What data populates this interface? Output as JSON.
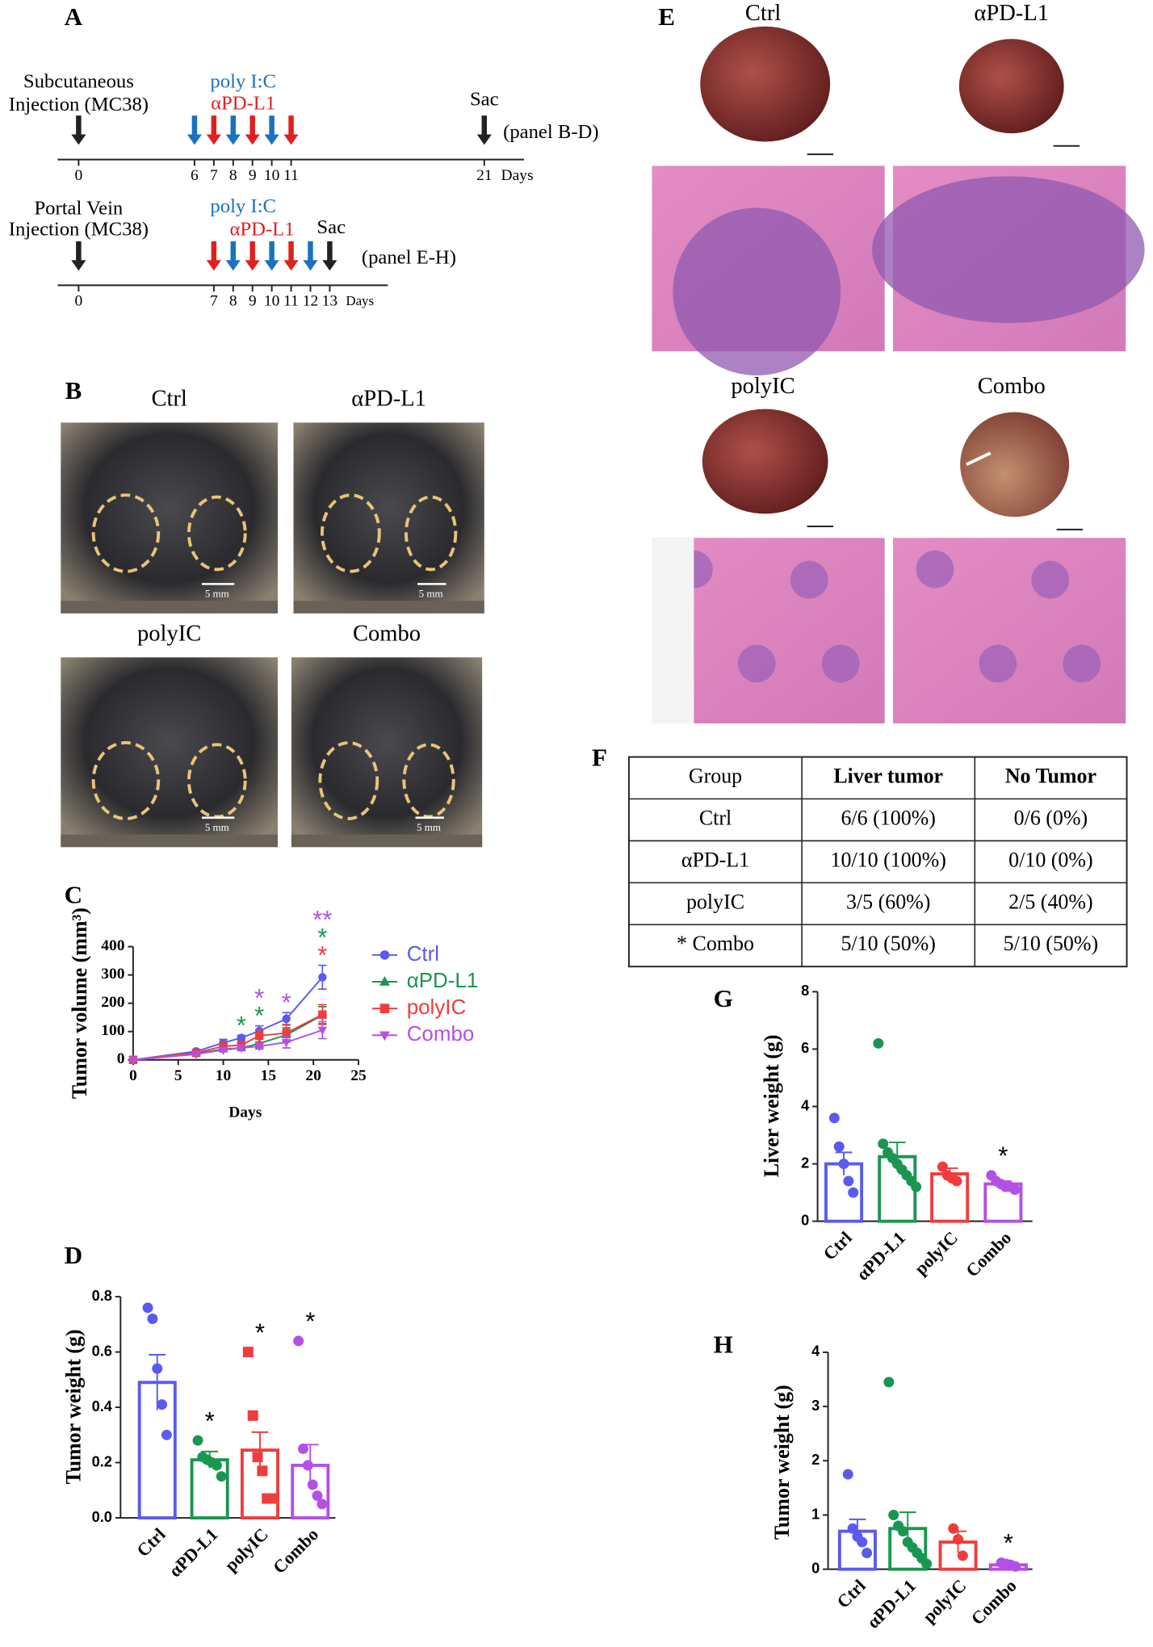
{
  "panel_letters": [
    "A",
    "B",
    "C",
    "D",
    "E",
    "F",
    "G",
    "H"
  ],
  "timeline": {
    "sections": [
      {
        "injection": [
          "Subcutaneous",
          "Injection (MC38)"
        ],
        "treatments": [
          "poly I:C",
          "αPD-L1"
        ],
        "sac": "Sac",
        "panels": "(panel B-D)",
        "unit": "Days",
        "ticks": [
          0,
          6,
          7,
          8,
          9,
          10,
          11,
          21
        ],
        "arrows": {
          "black": [
            0,
            21
          ],
          "blue": [
            6,
            8,
            10
          ],
          "red": [
            7,
            9,
            11
          ]
        }
      },
      {
        "injection": [
          "Portal Vein",
          "Injection (MC38)"
        ],
        "treatments": [
          "poly I:C",
          "αPD-L1"
        ],
        "sac": "Sac",
        "panels": "(panel E-H)",
        "unit": "Days",
        "ticks": [
          0,
          7,
          8,
          9,
          10,
          11,
          12,
          13
        ],
        "arrows": {
          "black": [
            0,
            13
          ],
          "blue": [
            8,
            10,
            12
          ],
          "red": [
            7,
            9,
            11
          ]
        }
      }
    ]
  },
  "photos_b": {
    "labels": [
      "Ctrl",
      "αPD-L1",
      "polyIC",
      "Combo"
    ],
    "scale": [
      "5 mm",
      "5 mm",
      "5 mm",
      "5 mm"
    ]
  },
  "photos_e": {
    "labels": [
      "Ctrl",
      "αPD-L1",
      "polyIC",
      "Combo"
    ]
  },
  "table": {
    "header": [
      "Group",
      "Liver tumor",
      "No Tumor"
    ],
    "rows": [
      [
        "Ctrl",
        "6/6 (100%)",
        "0/6 (0%)"
      ],
      [
        "αPD-L1",
        "10/10 (100%)",
        "0/10 (0%)"
      ],
      [
        "polyIC",
        "3/5 (60%)",
        "2/5 (40%)"
      ],
      [
        "* Combo",
        "5/10 (50%)",
        "5/10 (50%)"
      ]
    ]
  },
  "chart_data": [
    {
      "type": "line",
      "y_label": "Tumor volume (mm³)",
      "x_label": "Days",
      "x": [
        0,
        7,
        10,
        12,
        14,
        17,
        21
      ],
      "xlim": [
        0,
        25
      ],
      "xticks": [
        0,
        5,
        10,
        15,
        20,
        25
      ],
      "ylim": [
        0,
        400
      ],
      "yticks": [
        0,
        100,
        200,
        300,
        400
      ],
      "series": [
        {
          "name": "Ctrl",
          "color": "#5a5af0",
          "marker": "circle",
          "values": [
            0,
            30,
            60,
            78,
            102,
            145,
            292
          ],
          "errors": [
            2,
            5,
            12,
            8,
            18,
            22,
            42
          ],
          "marks": [
            null,
            null,
            null,
            null,
            null,
            null,
            null
          ]
        },
        {
          "name": "αPD-L1",
          "color": "#1a9650",
          "marker": "triangle",
          "values": [
            0,
            22,
            38,
            42,
            58,
            88,
            158
          ],
          "errors": [
            2,
            5,
            8,
            8,
            15,
            25,
            30
          ],
          "marks": [
            null,
            null,
            null,
            "*",
            "*",
            null,
            "*"
          ]
        },
        {
          "name": "polyIC",
          "color": "#f03c3c",
          "marker": "square",
          "values": [
            0,
            25,
            48,
            52,
            85,
            95,
            160
          ],
          "errors": [
            2,
            5,
            10,
            10,
            22,
            30,
            35
          ],
          "marks": [
            null,
            null,
            null,
            null,
            null,
            null,
            "*"
          ]
        },
        {
          "name": "Combo",
          "color": "#b450e6",
          "marker": "down-triangle",
          "values": [
            0,
            20,
            35,
            42,
            48,
            62,
            105
          ],
          "errors": [
            2,
            4,
            6,
            8,
            10,
            20,
            30
          ],
          "marks": [
            null,
            null,
            null,
            null,
            "*",
            "*",
            "**"
          ]
        }
      ]
    },
    {
      "type": "bar",
      "y_label": "Tumor weight (g)",
      "categories": [
        "Ctrl",
        "αPD-L1",
        "polyIC",
        "Combo"
      ],
      "colors": [
        "#5a5af0",
        "#1a9650",
        "#f03c3c",
        "#b450e6"
      ],
      "markers": [
        "circle",
        "circle",
        "square",
        "circle"
      ],
      "values": [
        0.49,
        0.21,
        0.245,
        0.19
      ],
      "errors": [
        0.1,
        0.03,
        0.065,
        0.075
      ],
      "points": [
        [
          0.76,
          0.72,
          0.54,
          0.41,
          0.3
        ],
        [
          0.28,
          0.22,
          0.21,
          0.2,
          0.19,
          0.15
        ],
        [
          0.6,
          0.37,
          0.22,
          0.17,
          0.07,
          0.07
        ],
        [
          0.64,
          0.25,
          0.19,
          0.12,
          0.08,
          0.05
        ]
      ],
      "stars": [
        null,
        "*",
        "*",
        "*"
      ],
      "ylim": [
        0,
        0.8
      ],
      "yticks": [
        {
          "value": 0,
          "label": "0.0"
        },
        0.2,
        0.4,
        0.6,
        0.8
      ]
    },
    {
      "type": "bar",
      "y_label": "Liver weight (g)",
      "categories": [
        "Ctrl",
        "αPD-L1",
        "polyIC",
        "Combo"
      ],
      "colors": [
        "#5a5af0",
        "#1a9650",
        "#f03c3c",
        "#b450e6"
      ],
      "markers": [
        "circle",
        "circle",
        "circle",
        "circle"
      ],
      "values": [
        2.0,
        2.25,
        1.65,
        1.3
      ],
      "errors": [
        0.4,
        0.5,
        0.2,
        0.1
      ],
      "points": [
        [
          3.6,
          2.6,
          2.0,
          1.4,
          1.0
        ],
        [
          6.2,
          2.7,
          2.4,
          2.2,
          2.0,
          1.8,
          1.6,
          1.4,
          1.2
        ],
        [
          1.9,
          1.6,
          1.5,
          1.4
        ],
        [
          1.6,
          1.4,
          1.3,
          1.2,
          1.2,
          1.1
        ]
      ],
      "stars": [
        null,
        null,
        null,
        "*"
      ],
      "ylim": [
        0,
        8
      ],
      "yticks": [
        0,
        2,
        4,
        6,
        8
      ]
    },
    {
      "type": "bar",
      "y_label": "Tumor weight (g)",
      "categories": [
        "Ctrl",
        "αPD-L1",
        "polyIC",
        "Combo"
      ],
      "colors": [
        "#5a5af0",
        "#1a9650",
        "#f03c3c",
        "#b450e6"
      ],
      "markers": [
        "circle",
        "circle",
        "circle",
        "circle"
      ],
      "values": [
        0.7,
        0.75,
        0.5,
        0.08
      ],
      "errors": [
        0.22,
        0.3,
        0.2,
        0.03
      ],
      "points": [
        [
          1.75,
          0.75,
          0.6,
          0.5,
          0.3
        ],
        [
          3.45,
          1.0,
          0.8,
          0.7,
          0.5,
          0.4,
          0.3,
          0.2,
          0.1
        ],
        [
          0.75,
          0.55,
          0.25
        ],
        [
          0.12,
          0.1,
          0.08,
          0.05
        ]
      ],
      "stars": [
        null,
        null,
        null,
        "*"
      ],
      "ylim": [
        0,
        4
      ],
      "yticks": [
        0,
        1,
        2,
        3,
        4
      ]
    }
  ]
}
